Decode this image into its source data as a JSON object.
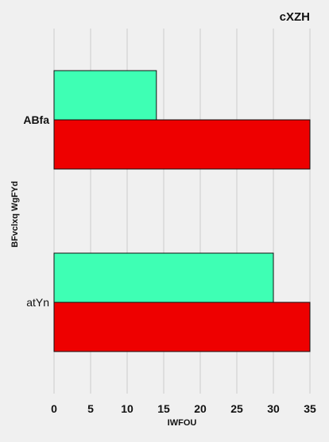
{
  "chart_data": {
    "type": "bar",
    "orientation": "horizontal",
    "title": "cXZH",
    "xlabel": "IWFOU",
    "ylabel": "BFvclxq WgFYd",
    "categories": [
      "ABfa",
      "atYn"
    ],
    "series": [
      {
        "values": [
          14,
          30
        ],
        "color": "#3effb4"
      },
      {
        "values": [
          35,
          35
        ],
        "color": "#ee0000"
      }
    ],
    "xlim": [
      0,
      35
    ],
    "xticks": [
      0,
      5,
      10,
      15,
      20,
      25,
      30,
      35
    ],
    "grid": true,
    "background": "#f0f0f0"
  }
}
